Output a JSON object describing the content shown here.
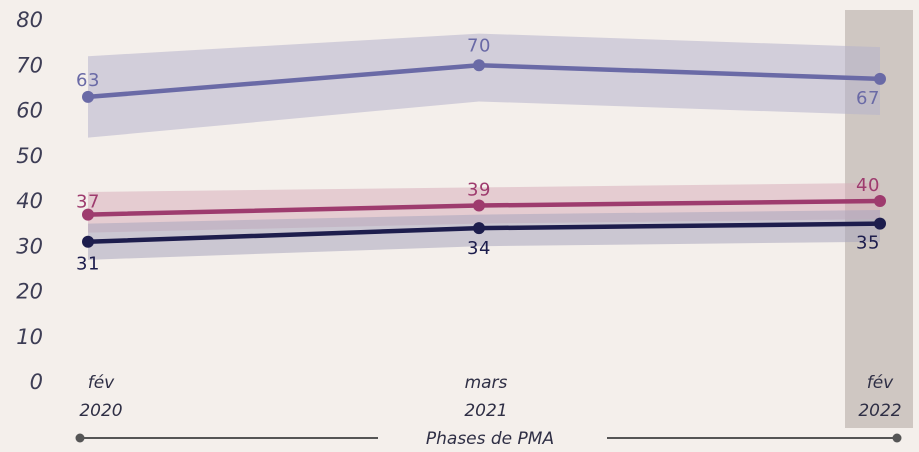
{
  "chart_data": {
    "type": "line",
    "x": [
      "fév 2020",
      "mars 2021",
      "fév 2022"
    ],
    "x_tick_labels": [
      {
        "line1": "fév",
        "line2": "2020"
      },
      {
        "line1": "mars",
        "line2": "2021"
      },
      {
        "line1": "fév",
        "line2": "2022"
      }
    ],
    "xlabel": "Phases de PMA",
    "ylim": [
      0,
      80
    ],
    "yticks": [
      0,
      10,
      20,
      30,
      40,
      50,
      60,
      70,
      80
    ],
    "grid": false,
    "legend": "none",
    "highlighted_category": "fév 2022",
    "series": [
      {
        "values": [
          63,
          70,
          67
        ],
        "ci_low": [
          54,
          62,
          59
        ],
        "ci_high": [
          72,
          77,
          74
        ],
        "color": "#6a6aa6",
        "band_color": "#b7b3cc"
      },
      {
        "values": [
          37,
          39,
          40
        ],
        "ci_low": [
          33,
          35,
          36
        ],
        "ci_high": [
          42,
          43,
          44
        ],
        "color": "#9e3b6e",
        "band_color": "#d8aebb"
      },
      {
        "values": [
          31,
          34,
          35
        ],
        "ci_low": [
          27,
          30,
          31
        ],
        "ci_high": [
          35,
          37,
          38
        ],
        "color": "#1d1d4d",
        "band_color": "#aaa6bd"
      }
    ]
  }
}
